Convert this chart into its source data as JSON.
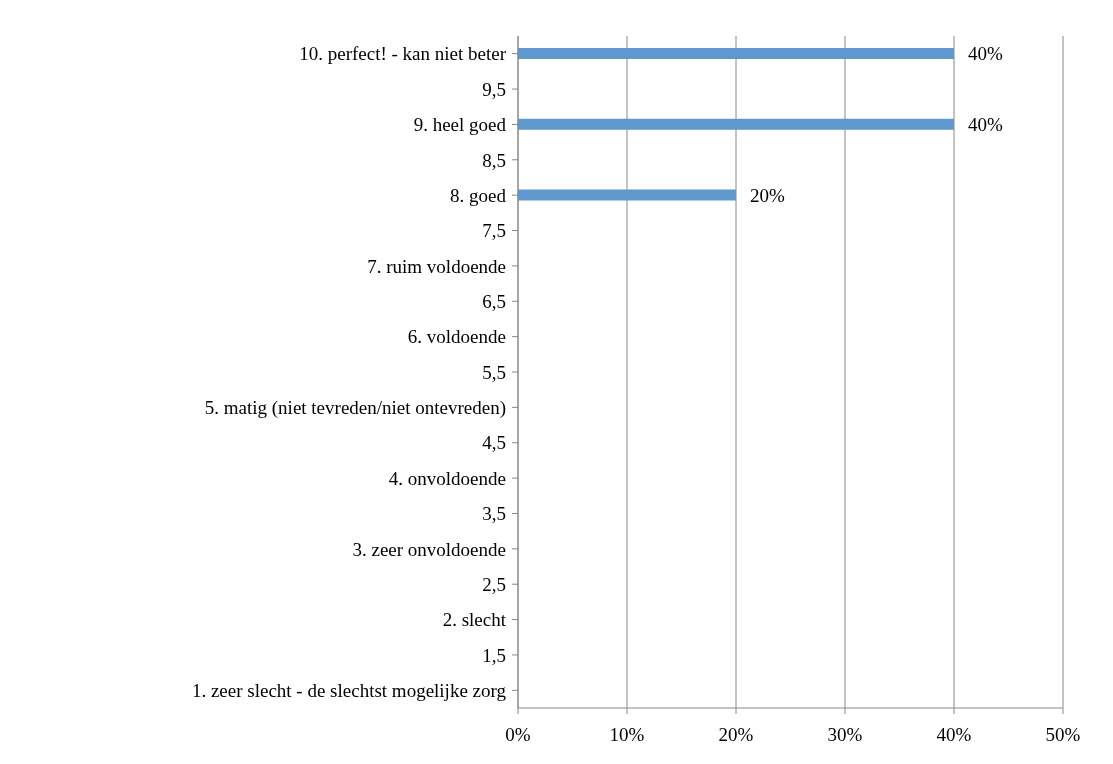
{
  "chart_data": {
    "type": "bar",
    "orientation": "horizontal",
    "categories": [
      "10. perfect! - kan niet beter",
      "9,5",
      "9. heel goed",
      "8,5",
      "8. goed",
      "7,5",
      "7. ruim voldoende",
      "6,5",
      "6. voldoende",
      "5,5",
      "5. matig (niet tevreden/niet ontevreden)",
      "4,5",
      "4. onvoldoende",
      "3,5",
      "3. zeer onvoldoende",
      "2,5",
      "2. slecht",
      "1,5",
      "1. zeer slecht - de slechtst mogelijke zorg"
    ],
    "values": [
      40,
      null,
      40,
      null,
      20,
      null,
      null,
      null,
      null,
      null,
      null,
      null,
      null,
      null,
      null,
      null,
      null,
      null,
      null
    ],
    "value_labels": [
      "40%",
      null,
      "40%",
      null,
      "20%",
      null,
      null,
      null,
      null,
      null,
      null,
      null,
      null,
      null,
      null,
      null,
      null,
      null,
      null
    ],
    "color": "#5f97cf",
    "xlim": [
      0,
      50
    ],
    "xticks": [
      {
        "value": 0,
        "label": "0%"
      },
      {
        "value": 10,
        "label": "10%"
      },
      {
        "value": 20,
        "label": "20%"
      },
      {
        "value": 30,
        "label": "30%"
      },
      {
        "value": 40,
        "label": "40%"
      },
      {
        "value": 50,
        "label": "50%"
      }
    ],
    "grid": "x",
    "legend": false
  }
}
